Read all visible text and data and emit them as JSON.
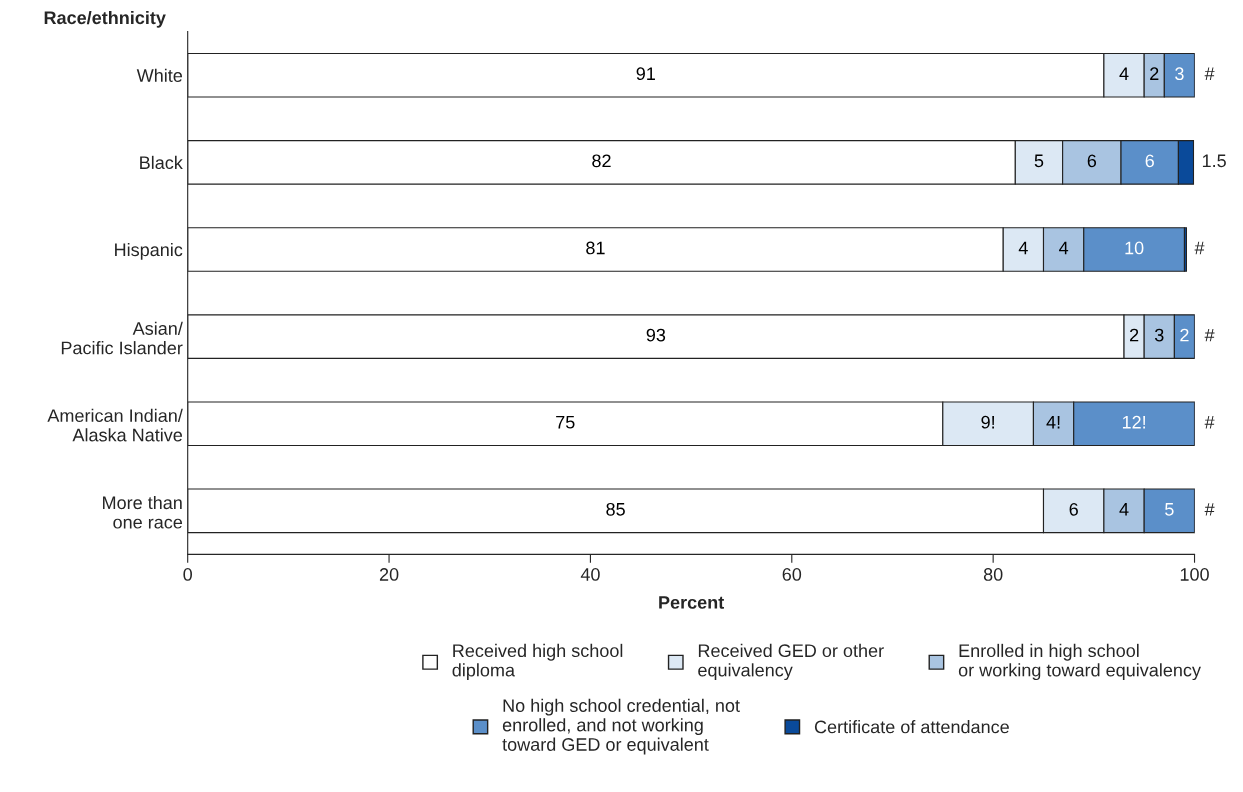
{
  "chart_data": {
    "type": "bar",
    "orientation": "horizontal",
    "stacked": true,
    "ylabel": "Race/ethnicity",
    "xlabel": "Percent",
    "categories": [
      "White",
      "Black",
      "Hispanic",
      "Asian/\nPacific Islander",
      "American Indian/\nAlaska Native",
      "More than\none race"
    ],
    "series": [
      {
        "name": "Received high school\ndiploma",
        "color": "#ffffff",
        "values": [
          91,
          82.2,
          81,
          93,
          75,
          85
        ],
        "value_labels": [
          "91",
          "82",
          "81",
          "93",
          "75",
          "85"
        ]
      },
      {
        "name": "Received GED or other\nequivalency",
        "color": "#dce8f4",
        "values": [
          4,
          4.7,
          4,
          2,
          9,
          6
        ],
        "value_labels": [
          "4",
          "5",
          "4",
          "2",
          "9!",
          "6"
        ]
      },
      {
        "name": "Enrolled in high school\nor working toward equivalency",
        "color": "#a9c4e1",
        "values": [
          2,
          5.8,
          4,
          3,
          4,
          4
        ],
        "value_labels": [
          "2",
          "6",
          "4",
          "3",
          "4!",
          "4"
        ]
      },
      {
        "name": "No high school credential, not\nenrolled, and not working\ntoward GED or equivalent",
        "color": "#5b8fc9",
        "values": [
          3,
          5.7,
          10,
          2,
          12,
          5
        ],
        "value_labels": [
          "3",
          "6",
          "10",
          "2",
          "12!",
          "5"
        ]
      },
      {
        "name": "Certificate of attendance",
        "color": "#0a4a9a",
        "values": [
          0.2,
          1.5,
          0.2,
          0.2,
          0.2,
          0.2
        ],
        "value_labels": [
          "#",
          "1.5",
          "#",
          "#",
          "#",
          "#"
        ]
      }
    ],
    "xlim": [
      0,
      100
    ],
    "xticks": [
      0,
      20,
      40,
      60,
      80,
      100
    ],
    "grid": false,
    "legend": "bottom"
  }
}
